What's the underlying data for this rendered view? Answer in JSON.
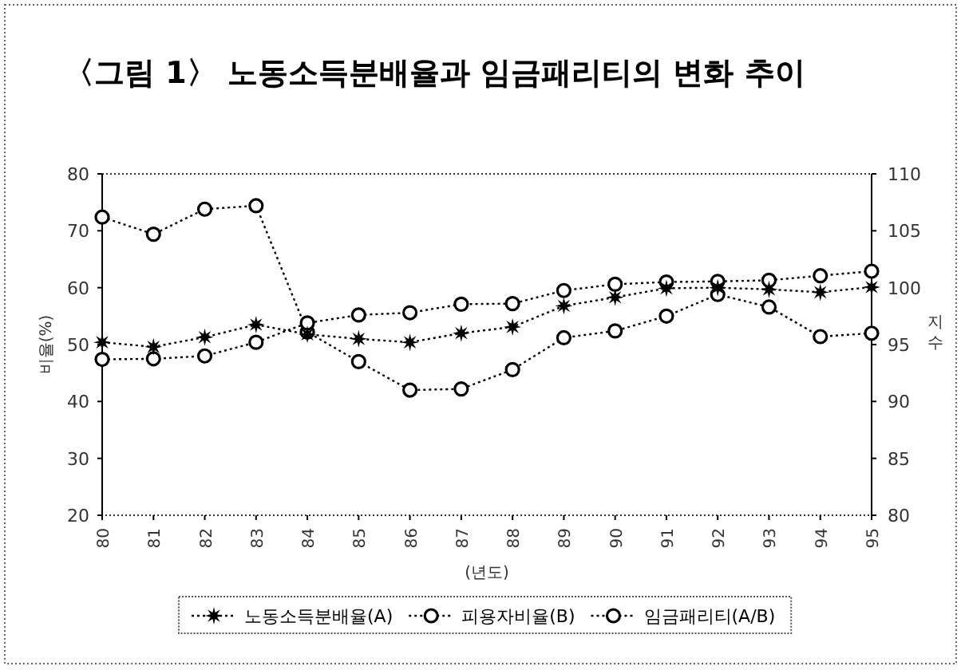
{
  "chart_data": {
    "type": "line",
    "title": "〈그림 1〉 노동소득분배율과 임금패리티의 변화 추이",
    "xlabel": "(년도)",
    "ylabel": "비율(%)",
    "y2label": "지수",
    "categories": [
      "80",
      "81",
      "82",
      "83",
      "84",
      "85",
      "86",
      "87",
      "88",
      "89",
      "90",
      "91",
      "92",
      "93",
      "94",
      "95"
    ],
    "ylim": [
      20,
      80
    ],
    "yticks": [
      20,
      30,
      40,
      50,
      60,
      70,
      80
    ],
    "y2lim": [
      80,
      110
    ],
    "y2ticks": [
      80,
      85,
      90,
      95,
      100,
      105,
      110
    ],
    "legend": "bottom",
    "line_style": "dotted",
    "grid": false,
    "series": [
      {
        "name": "노동소득분배율(A)",
        "color": "#000000",
        "marker": "star",
        "values": [
          50.4,
          49.6,
          51.3,
          53.5,
          51.8,
          51.0,
          50.4,
          52.0,
          53.1,
          56.8,
          58.3,
          59.9,
          60.0,
          59.7,
          59.2,
          60.1
        ]
      },
      {
        "name": "피용자비율(B)",
        "color": "#000000",
        "marker": "circle",
        "values": [
          47.4,
          47.5,
          48.0,
          50.4,
          53.8,
          55.2,
          55.6,
          57.1,
          57.2,
          59.5,
          60.6,
          61.0,
          61.1,
          61.3,
          62.1,
          62.9
        ]
      },
      {
        "name": "임금패리티(A/B)",
        "color": "#000000",
        "marker": "circle",
        "axis": "y2",
        "values": [
          106.2,
          104.7,
          106.9,
          107.2,
          96.1,
          93.5,
          91.0,
          91.1,
          92.8,
          95.6,
          96.2,
          97.5,
          99.4,
          98.3,
          95.7,
          96.0
        ]
      }
    ]
  }
}
